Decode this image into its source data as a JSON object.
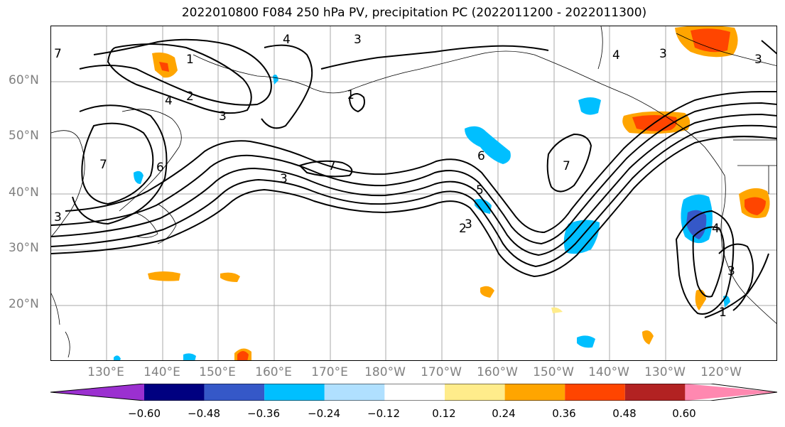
{
  "title": "2022010800 F084 250 hPa PV, precipitation PC (2022011200 - 2022011300)",
  "lat_labels": [
    "60°N",
    "50°N",
    "40°N",
    "30°N",
    "20°N"
  ],
  "lon_labels": [
    "130°E",
    "140°E",
    "150°E",
    "160°E",
    "170°E",
    "180°W",
    "170°W",
    "160°W",
    "150°W",
    "140°W",
    "130°W",
    "120°W"
  ],
  "contour_labels": [
    "1",
    "2",
    "3",
    "4",
    "5",
    "6",
    "7"
  ],
  "colorbar": {
    "colors": [
      "#9b30d0",
      "#000080",
      "#3558c8",
      "#00bfff",
      "#b0e0ff",
      "#ffffff",
      "#ffec8b",
      "#ffa500",
      "#ff4500",
      "#b22222",
      "#ff88b0"
    ],
    "ticks": [
      "−0.60",
      "−0.48",
      "−0.36",
      "−0.24",
      "−0.12",
      "0.12",
      "0.24",
      "0.36",
      "0.48",
      "0.60"
    ]
  }
}
